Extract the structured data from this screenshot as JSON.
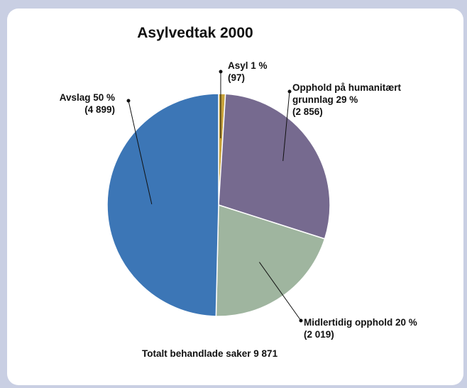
{
  "chart_data": {
    "type": "pie",
    "title": "Asylvedtak 2000",
    "total_label": "Totalt behandlade saker 9 871",
    "slices": [
      {
        "name": "Asyl",
        "percent_label": "Asyl 1 %",
        "count_label": "(97)",
        "value": 97,
        "color": "#c8a23a"
      },
      {
        "name": "Opphold på humanitært grunnlag",
        "percent_label": [
          "Opphold på humanitært",
          "grunnlag 29 %"
        ],
        "count_label": "(2 856)",
        "value": 2856,
        "color": "#766a8f"
      },
      {
        "name": "Midlertidig opphold",
        "percent_label": "Midlertidig opphold 20 %",
        "count_label": "(2 019)",
        "value": 2019,
        "color": "#9fb59f"
      },
      {
        "name": "Avslag",
        "percent_label": "Avslag 50 %",
        "count_label": "(4 899)",
        "value": 4899,
        "color": "#3c76b6"
      }
    ]
  }
}
